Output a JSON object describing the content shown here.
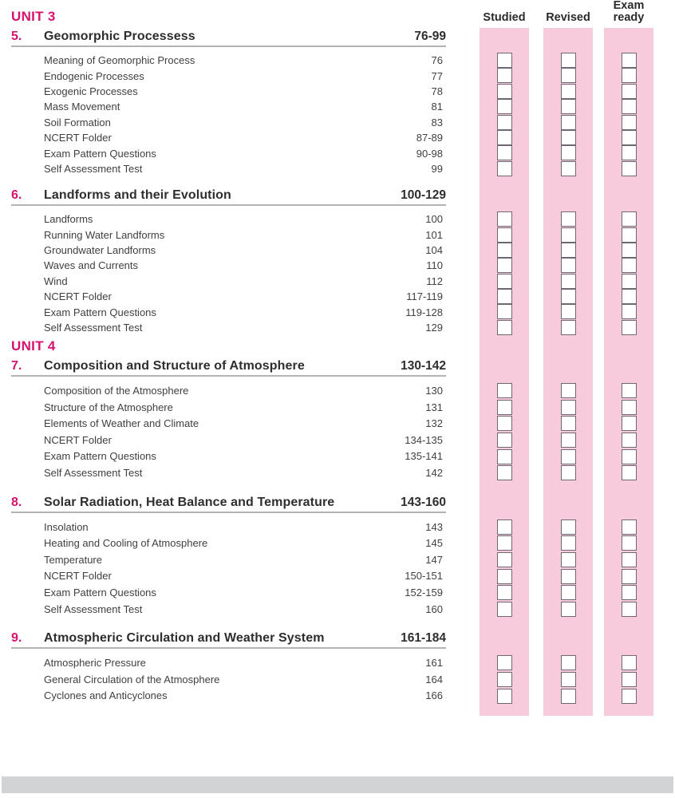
{
  "page": {
    "columns": [
      "Studied",
      "Revised",
      "Exam ready"
    ],
    "all_checkboxes_unchecked": true,
    "units": [
      {
        "label": "UNIT 3",
        "chapters": [
          {
            "number": "5.",
            "title": "Geomorphic Processess",
            "pages": "76-99",
            "subitems": [
              {
                "title": "Meaning of Geomorphic Process",
                "page": "76"
              },
              {
                "title": "Endogenic Processes",
                "page": "77"
              },
              {
                "title": "Exogenic Processes",
                "page": "78"
              },
              {
                "title": "Mass Movement",
                "page": "81"
              },
              {
                "title": "Soil Formation",
                "page": "83"
              },
              {
                "title": "NCERT Folder",
                "page": "87-89"
              },
              {
                "title": "Exam Pattern Questions",
                "page": "90-98"
              },
              {
                "title": "Self Assessment Test",
                "page": "99"
              }
            ]
          },
          {
            "number": "6.",
            "title": "Landforms and their Evolution",
            "pages": "100-129",
            "subitems": [
              {
                "title": "Landforms",
                "page": "100"
              },
              {
                "title": "Running Water Landforms",
                "page": "101"
              },
              {
                "title": "Groundwater Landforms",
                "page": "104"
              },
              {
                "title": "Waves and Currents",
                "page": "110"
              },
              {
                "title": "Wind",
                "page": "112"
              },
              {
                "title": "NCERT Folder",
                "page": "117-119"
              },
              {
                "title": "Exam Pattern Questions",
                "page": "119-128"
              },
              {
                "title": "Self Assessment Test",
                "page": "129"
              }
            ]
          }
        ]
      },
      {
        "label": "UNIT 4",
        "chapters": [
          {
            "number": "7.",
            "title": "Composition and Structure of Atmosphere",
            "pages": "130-142",
            "subitems": [
              {
                "title": "Composition of the Atmosphere",
                "page": "130"
              },
              {
                "title": "Structure of the Atmosphere",
                "page": "131"
              },
              {
                "title": "Elements of Weather and Climate",
                "page": "132"
              },
              {
                "title": "NCERT Folder",
                "page": "134-135"
              },
              {
                "title": "Exam Pattern Questions",
                "page": "135-141"
              },
              {
                "title": "Self Assessment Test",
                "page": "142"
              }
            ]
          },
          {
            "number": "8.",
            "title": "Solar Radiation, Heat Balance and Temperature",
            "pages": "143-160",
            "subitems": [
              {
                "title": "Insolation",
                "page": "143"
              },
              {
                "title": "Heating and Cooling of Atmosphere",
                "page": "145"
              },
              {
                "title": "Temperature",
                "page": "147"
              },
              {
                "title": "NCERT Folder",
                "page": "150-151"
              },
              {
                "title": "Exam Pattern Questions",
                "page": "152-159"
              },
              {
                "title": "Self Assessment Test",
                "page": "160"
              }
            ]
          },
          {
            "number": "9.",
            "title": "Atmospheric Circulation and Weather System",
            "pages": "161-184",
            "subitems": [
              {
                "title": "Atmospheric Pressure",
                "page": "161"
              },
              {
                "title": "General Circulation of the Atmosphere",
                "page": "164"
              },
              {
                "title": "Cyclones and Anticyclones",
                "page": "166"
              }
            ]
          }
        ]
      }
    ],
    "colors": {
      "accent_magenta": "#d6136e",
      "band_pink": "#f7cbdc",
      "checkbox_border": "#6e6772",
      "rule_gray": "#b3b3b3",
      "footer_bar_gray": "#d2d3d4"
    }
  }
}
